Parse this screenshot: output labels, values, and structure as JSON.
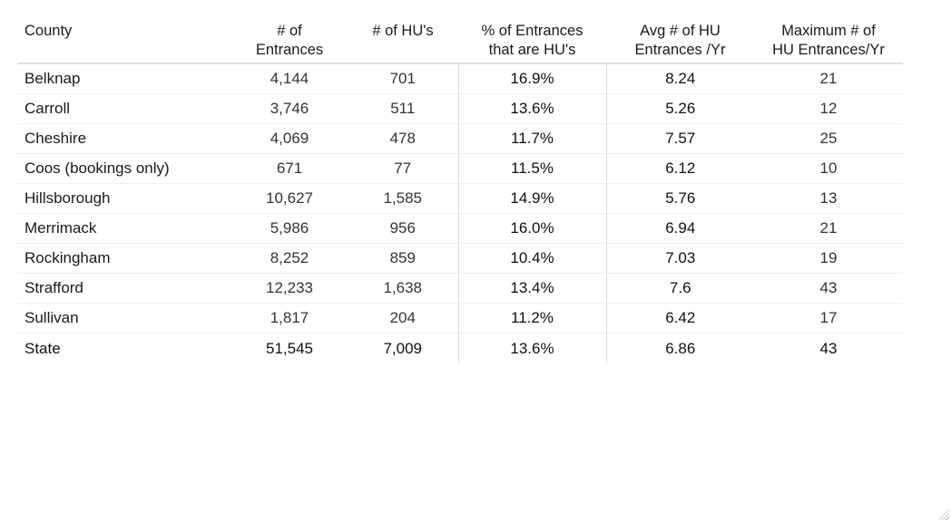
{
  "chart_data": {
    "type": "table",
    "columns": [
      "County",
      "# of Entrances",
      "# of HU's",
      "% of Entrances that are HU's",
      "Avg # of HU Entrances /Yr",
      "Maximum # of HU Entrances/Yr"
    ],
    "header_lines": [
      [
        "County"
      ],
      [
        "# of",
        "Entrances"
      ],
      [
        "# of HU's"
      ],
      [
        "% of Entrances",
        "that are HU's"
      ],
      [
        "Avg # of HU",
        "Entrances /Yr"
      ],
      [
        "Maximum # of",
        "HU Entrances/Yr"
      ]
    ],
    "rows": [
      [
        "Belknap",
        "4,144",
        "701",
        "16.9%",
        "8.24",
        "21"
      ],
      [
        "Carroll",
        "3,746",
        "511",
        "13.6%",
        "5.26",
        "12"
      ],
      [
        "Cheshire",
        "4,069",
        "478",
        "11.7%",
        "7.57",
        "25"
      ],
      [
        "Coos (bookings only)",
        "671",
        "77",
        "11.5%",
        "6.12",
        "10"
      ],
      [
        "Hillsborough",
        "10,627",
        "1,585",
        "14.9%",
        "5.76",
        "13"
      ],
      [
        "Merrimack",
        "5,986",
        "956",
        "16.0%",
        "6.94",
        "21"
      ],
      [
        "Rockingham",
        "8,252",
        "859",
        "10.4%",
        "7.03",
        "19"
      ],
      [
        "Strafford",
        "12,233",
        "1,638",
        "13.4%",
        "7.6",
        "43"
      ],
      [
        "Sullivan",
        "1,817",
        "204",
        "11.2%",
        "6.42",
        "17"
      ]
    ],
    "total_row": [
      "State",
      "51,545",
      "7,009",
      "13.6%",
      "6.86",
      "43"
    ]
  }
}
